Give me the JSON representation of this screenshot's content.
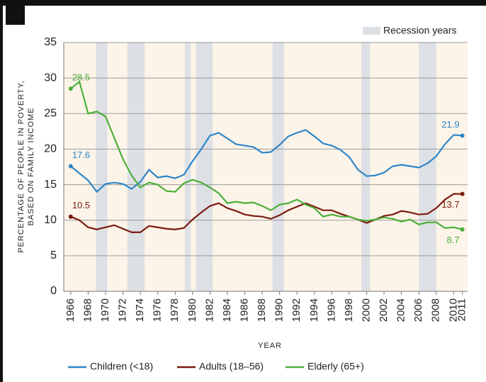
{
  "chart_data": {
    "type": "line",
    "x_label": "YEAR",
    "y_label": [
      "PERCENTAGE OF PEOPLE IN POVERTY,",
      "BASED ON FAMILY INCOME"
    ],
    "x": [
      1966,
      1967,
      1968,
      1969,
      1970,
      1971,
      1972,
      1973,
      1974,
      1975,
      1976,
      1977,
      1978,
      1979,
      1980,
      1981,
      1982,
      1983,
      1984,
      1985,
      1986,
      1987,
      1988,
      1989,
      1990,
      1991,
      1992,
      1993,
      1994,
      1995,
      1996,
      1997,
      1998,
      1999,
      2000,
      2001,
      2002,
      2003,
      2004,
      2005,
      2006,
      2007,
      2008,
      2009,
      2010,
      2011
    ],
    "series": [
      {
        "name": "Children (<18)",
        "color": "#2e86c8",
        "values": [
          17.6,
          16.6,
          15.6,
          14.0,
          15.1,
          15.3,
          15.1,
          14.4,
          15.4,
          17.1,
          16.0,
          16.2,
          15.9,
          16.4,
          18.3,
          20.0,
          21.9,
          22.3,
          21.5,
          20.7,
          20.5,
          20.3,
          19.5,
          19.6,
          20.6,
          21.8,
          22.3,
          22.7,
          21.8,
          20.8,
          20.5,
          19.9,
          18.9,
          17.1,
          16.2,
          16.3,
          16.7,
          17.6,
          17.8,
          17.6,
          17.4,
          18.0,
          19.0,
          20.7,
          22.0,
          21.9
        ]
      },
      {
        "name": "Adults (18–56)",
        "color": "#7b1a12",
        "values": [
          10.5,
          10.0,
          9.0,
          8.7,
          9.0,
          9.3,
          8.8,
          8.3,
          8.3,
          9.2,
          9.0,
          8.8,
          8.7,
          8.9,
          10.1,
          11.1,
          12.0,
          12.4,
          11.7,
          11.3,
          10.8,
          10.6,
          10.5,
          10.2,
          10.7,
          11.4,
          11.9,
          12.4,
          11.9,
          11.4,
          11.4,
          10.9,
          10.5,
          10.1,
          9.6,
          10.1,
          10.6,
          10.8,
          11.3,
          11.1,
          10.8,
          10.9,
          11.7,
          12.9,
          13.7,
          13.7
        ]
      },
      {
        "name": "Elderly (65+)",
        "color": "#4caf3a",
        "values": [
          28.5,
          29.5,
          25.0,
          25.3,
          24.6,
          21.6,
          18.6,
          16.3,
          14.6,
          15.3,
          15.0,
          14.1,
          14.0,
          15.2,
          15.7,
          15.3,
          14.6,
          13.8,
          12.4,
          12.6,
          12.4,
          12.5,
          12.0,
          11.4,
          12.2,
          12.4,
          12.9,
          12.2,
          11.7,
          10.5,
          10.8,
          10.5,
          10.5,
          10.1,
          9.9,
          10.1,
          10.4,
          10.2,
          9.8,
          10.1,
          9.4,
          9.7,
          9.7,
          8.9,
          9.0,
          8.7
        ]
      }
    ],
    "recession_label": "Recession years",
    "recession_color": "#dde0e5",
    "recessions": [
      [
        1968.9,
        1970.2
      ],
      [
        1972.5,
        1974.5
      ],
      [
        1979.1,
        1979.8
      ],
      [
        1980.4,
        1982.3
      ],
      [
        1989.2,
        1990.5
      ],
      [
        1999.4,
        2000.4
      ],
      [
        2006.0,
        2008.0
      ]
    ],
    "xlim": [
      1965.2,
      2011.6
    ],
    "xticks": [
      1966,
      1968,
      1970,
      1972,
      1974,
      1976,
      1978,
      1980,
      1982,
      1984,
      1986,
      1988,
      1990,
      1992,
      1994,
      1996,
      1998,
      2000,
      2002,
      2004,
      2006,
      2008,
      2010,
      2011
    ],
    "ylim": [
      0,
      35
    ],
    "yticks": [
      0,
      5,
      10,
      15,
      20,
      25,
      30,
      35
    ],
    "grid": true
  }
}
